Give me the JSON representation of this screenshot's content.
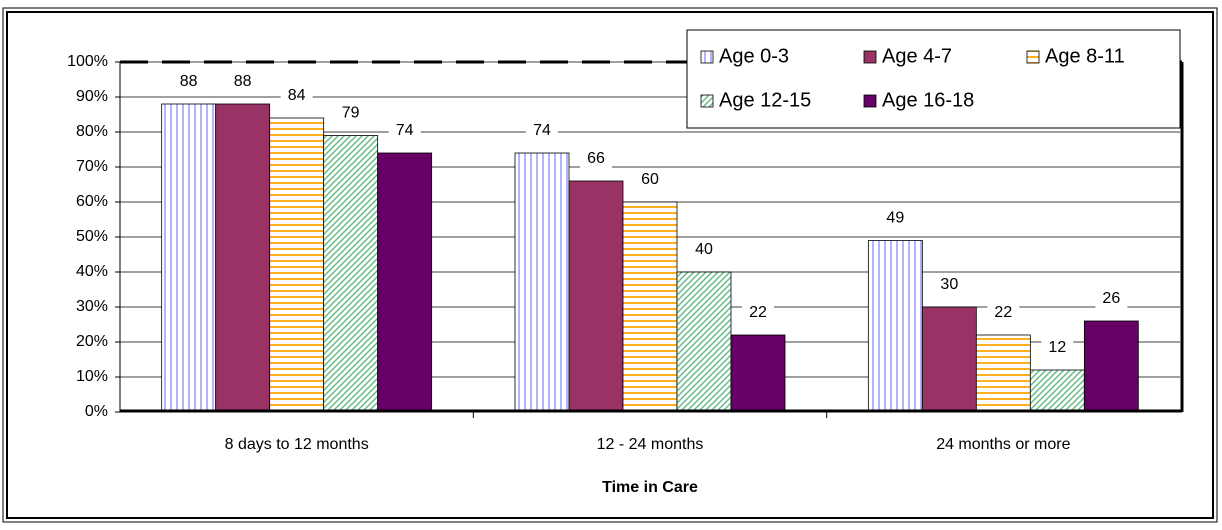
{
  "chart_data": {
    "type": "bar",
    "x_label": "Time in Care",
    "categories": [
      "8 days to 12 months",
      "12 - 24 months",
      "24 months or more"
    ],
    "series": [
      {
        "name": "Age 0-3",
        "color": "#9999ff",
        "pattern": "vertical",
        "values": [
          88,
          74,
          49
        ]
      },
      {
        "name": "Age 4-7",
        "color": "#993366",
        "pattern": "solid",
        "values": [
          88,
          66,
          30
        ]
      },
      {
        "name": "Age 8-11",
        "color": "#ffb020",
        "pattern": "horizontal",
        "values": [
          84,
          60,
          22
        ]
      },
      {
        "name": "Age 12-15",
        "color": "#66bb88",
        "pattern": "diagonal",
        "values": [
          79,
          40,
          12
        ]
      },
      {
        "name": "Age 16-18",
        "color": "#660066",
        "pattern": "solid",
        "values": [
          74,
          22,
          26
        ]
      }
    ],
    "ylim": [
      0,
      100
    ],
    "yticks": [
      {
        "value": 0,
        "label": "0%"
      },
      {
        "value": 10,
        "label": "10%"
      },
      {
        "value": 20,
        "label": "20%"
      },
      {
        "value": 30,
        "label": "30%"
      },
      {
        "value": 40,
        "label": "40%"
      },
      {
        "value": 50,
        "label": "50%"
      },
      {
        "value": 60,
        "label": "60%"
      },
      {
        "value": 70,
        "label": "70%"
      },
      {
        "value": 80,
        "label": "80%"
      },
      {
        "value": 90,
        "label": "90%"
      },
      {
        "value": 100,
        "label": "100%"
      }
    ],
    "grid": true,
    "legend": "top-right"
  }
}
